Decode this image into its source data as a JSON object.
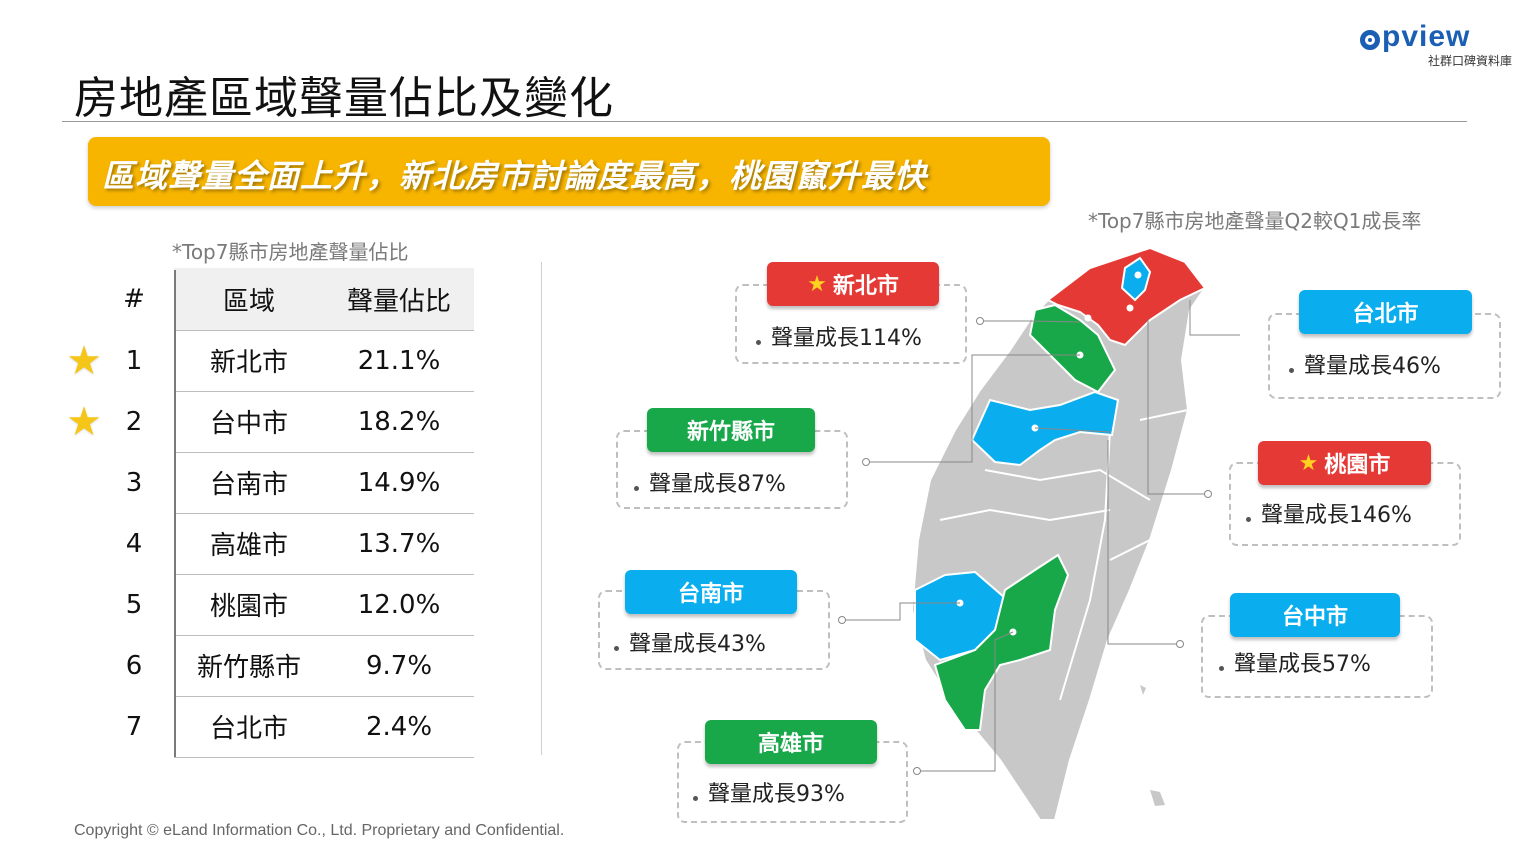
{
  "header": {
    "title": "房地產區域聲量佔比及變化",
    "logo_text": "pview",
    "logo_sub": "社群口碑資料庫"
  },
  "banner": {
    "text": "區域聲量全面上升，新北房市討論度最高，桃園竄升最快"
  },
  "notes": {
    "table_note": "*Top7縣市房地產聲量佔比",
    "map_note": "*Top7縣市房地產聲量Q2較Q1成長率"
  },
  "table": {
    "headers": {
      "rank": "#",
      "region": "區域",
      "share": "聲量佔比"
    },
    "rows": [
      {
        "rank": "1",
        "region": "新北市",
        "share": "21.1%",
        "star": true
      },
      {
        "rank": "2",
        "region": "台中市",
        "share": "18.2%",
        "star": true
      },
      {
        "rank": "3",
        "region": "台南市",
        "share": "14.9%",
        "star": false
      },
      {
        "rank": "4",
        "region": "高雄市",
        "share": "13.7%",
        "star": false
      },
      {
        "rank": "5",
        "region": "桃園市",
        "share": "12.0%",
        "star": false
      },
      {
        "rank": "6",
        "region": "新竹縣市",
        "share": "9.7%",
        "star": false
      },
      {
        "rank": "7",
        "region": "台北市",
        "share": "2.4%",
        "star": false
      }
    ]
  },
  "callouts": {
    "xinbei": {
      "name": "新北市",
      "growth": "聲量成長114%",
      "star": true,
      "color": "#e53935"
    },
    "taipei": {
      "name": "台北市",
      "growth": "聲量成長46%",
      "star": false,
      "color": "#0aaeef"
    },
    "hsinchu": {
      "name": "新竹縣市",
      "growth": "聲量成長87%",
      "star": false,
      "color": "#18a84a"
    },
    "taoyuan": {
      "name": "桃園市",
      "growth": "聲量成長146%",
      "star": true,
      "color": "#e53935"
    },
    "tainan": {
      "name": "台南市",
      "growth": "聲量成長43%",
      "star": false,
      "color": "#0aaeef"
    },
    "taichung": {
      "name": "台中市",
      "growth": "聲量成長57%",
      "star": false,
      "color": "#0aaeef"
    },
    "kaohsiung": {
      "name": "高雄市",
      "growth": "聲量成長93%",
      "star": false,
      "color": "#18a84a"
    }
  },
  "footer": {
    "copyright": "Copyright © eLand Information Co., Ltd. Proprietary and Confidential."
  },
  "icons": {
    "star": "star-icon",
    "bullet": "bullet-dot-icon"
  }
}
